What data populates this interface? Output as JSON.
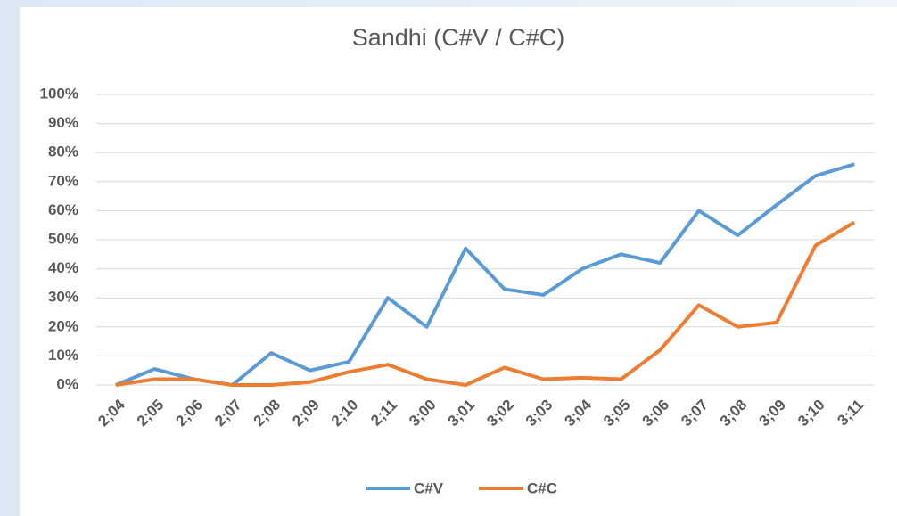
{
  "chart_data": {
    "type": "line",
    "title": "Sandhi (C#V / C#C)",
    "categories": [
      "2;04",
      "2;05",
      "2;06",
      "2;07",
      "2;08",
      "2;09",
      "2;10",
      "2;11",
      "3;00",
      "3;01",
      "3;02",
      "3;03",
      "3;04",
      "3;05",
      "3;06",
      "3;07",
      "3;08",
      "3;09",
      "3;10",
      "3;11"
    ],
    "series": [
      {
        "name": "C#V",
        "color": "#5b9bd5",
        "values": [
          0,
          5.5,
          2,
          0,
          11,
          5,
          8,
          30,
          20,
          47,
          33,
          31,
          40,
          45,
          42,
          60,
          51.5,
          62,
          72,
          76
        ]
      },
      {
        "name": "C#C",
        "color": "#ed7d31",
        "values": [
          0,
          2,
          2,
          0,
          0,
          1,
          4.5,
          7,
          2,
          0,
          6,
          2,
          2.5,
          2,
          12,
          27.5,
          20,
          21.5,
          48,
          56
        ]
      }
    ],
    "ylim": [
      0,
      100
    ],
    "yticks": [
      {
        "value": 0,
        "label": "0%"
      },
      {
        "value": 10,
        "label": "10%"
      },
      {
        "value": 20,
        "label": "20%"
      },
      {
        "value": 30,
        "label": "30%"
      },
      {
        "value": 40,
        "label": "40%"
      },
      {
        "value": 50,
        "label": "50%"
      },
      {
        "value": 60,
        "label": "60%"
      },
      {
        "value": 70,
        "label": "70%"
      },
      {
        "value": 80,
        "label": "80%"
      },
      {
        "value": 90,
        "label": "90%"
      },
      {
        "value": 100,
        "label": "100%"
      }
    ],
    "grid": true,
    "legend": "bottom"
  }
}
